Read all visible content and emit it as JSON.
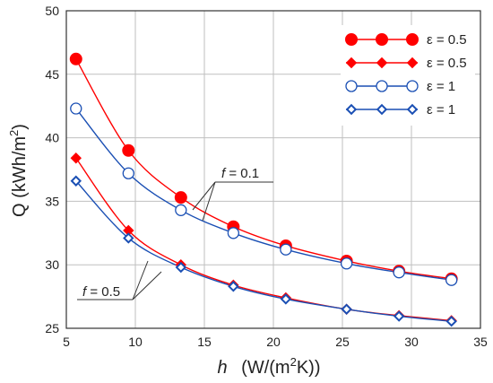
{
  "chart_data": {
    "type": "line",
    "xlabel_italic": "h",
    "xlabel_rest": "(W/(m",
    "xlabel_sup": "2",
    "xlabel_end": "K))",
    "ylabel_main": "Q (kWh/m",
    "ylabel_sup": "2",
    "ylabel_end": ")",
    "xlim": [
      5,
      35
    ],
    "ylim": [
      25,
      50
    ],
    "xticks": [
      "5",
      "10",
      "15",
      "20",
      "25",
      "30",
      "35"
    ],
    "yticks": [
      "25",
      "30",
      "35",
      "40",
      "45",
      "50"
    ],
    "grid": true,
    "legend_position": "top-right",
    "x": [
      5.7,
      9.5,
      13.3,
      17.1,
      20.9,
      25.3,
      29.1,
      32.9
    ],
    "series": [
      {
        "name": "ε = 0.5",
        "marker": "circle-filled",
        "color": "#ff0000",
        "values": [
          46.2,
          39.0,
          35.3,
          33.0,
          31.5,
          30.3,
          29.5,
          28.9
        ]
      },
      {
        "name": "ε = 0.5",
        "marker": "diamond-filled",
        "color": "#ff0000",
        "values": [
          38.4,
          32.7,
          30.0,
          28.4,
          27.4,
          26.5,
          26.0,
          25.6
        ]
      },
      {
        "name": "ε = 1",
        "marker": "circle-open",
        "color": "#1a4fb4",
        "values": [
          42.3,
          37.2,
          34.3,
          32.5,
          31.2,
          30.1,
          29.4,
          28.8
        ]
      },
      {
        "name": "ε = 1",
        "marker": "diamond-open",
        "color": "#1a4fb4",
        "values": [
          36.6,
          32.1,
          29.8,
          28.3,
          27.3,
          26.5,
          25.95,
          25.55
        ]
      }
    ],
    "annotations": [
      {
        "italic": "f",
        "text": " = 0.1",
        "position": "center"
      },
      {
        "italic": "f",
        "text": " = 0.5",
        "position": "lower-left"
      }
    ]
  }
}
